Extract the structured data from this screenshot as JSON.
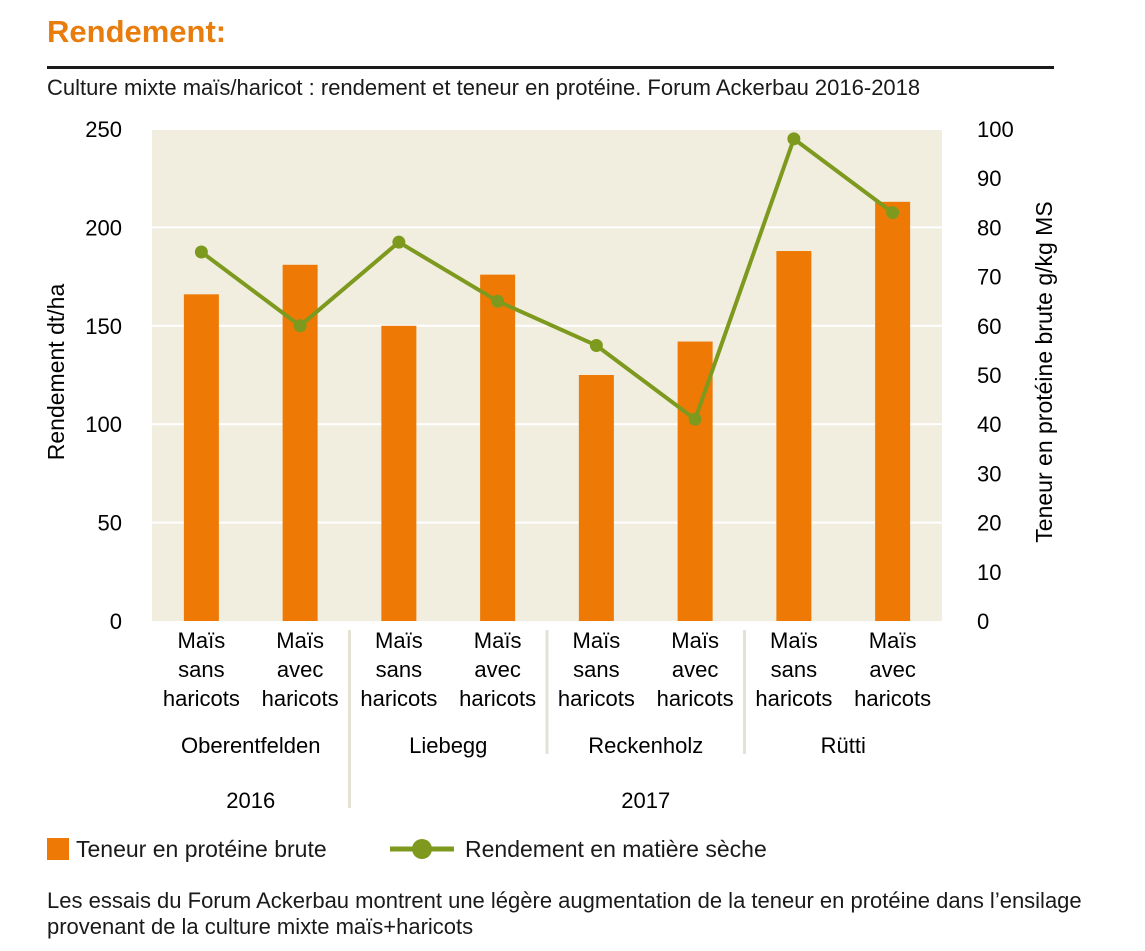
{
  "header": {
    "title": "Rendement:",
    "subtitle": "Culture mixte maïs/haricot : rendement et teneur en protéine. Forum Ackerbau 2016-2018"
  },
  "chart_data": {
    "type": "bar",
    "categories": [
      [
        "Maïs",
        "sans",
        "haricots"
      ],
      [
        "Maïs",
        "avec",
        "haricots"
      ],
      [
        "Maïs",
        "sans",
        "haricots"
      ],
      [
        "Maïs",
        "avec",
        "haricots"
      ],
      [
        "Maïs",
        "sans",
        "haricots"
      ],
      [
        "Maïs",
        "avec",
        "haricots"
      ],
      [
        "Maïs",
        "sans",
        "haricots"
      ],
      [
        "Maïs",
        "avec",
        "haricots"
      ]
    ],
    "groups": [
      "Oberentfelden",
      "Liebegg",
      "Reckenholz",
      "Rütti"
    ],
    "years": [
      "2016",
      "2017"
    ],
    "series": [
      {
        "name": "Teneur en protéine brute",
        "type": "bar",
        "axis": "left",
        "color": "#ee7a05",
        "values": [
          166,
          181,
          150,
          176,
          125,
          142,
          188,
          213
        ]
      },
      {
        "name": "Rendement en matière sèche",
        "type": "line",
        "axis": "right",
        "color": "#7d9a1e",
        "values": [
          75,
          60,
          77,
          65,
          56,
          41,
          98,
          83
        ]
      }
    ],
    "ylabel": "Rendement dt/ha",
    "ylabel_right": "Teneur en protéine brute g/kg MS",
    "ylim": [
      0,
      250
    ],
    "ylim_right": [
      0,
      100
    ],
    "yticks": [
      0,
      50,
      100,
      150,
      200,
      250
    ],
    "yticks_right": [
      0,
      10,
      20,
      30,
      40,
      50,
      60,
      70,
      80,
      90,
      100
    ],
    "grid": true,
    "legend": "bottom",
    "plot_background": "#f1eee0"
  },
  "note": "Les essais du Forum Ackerbau montrent une légère augmentation de la teneur en protéine dans l’ensilage provenant de la culture mixte maïs+haricots"
}
